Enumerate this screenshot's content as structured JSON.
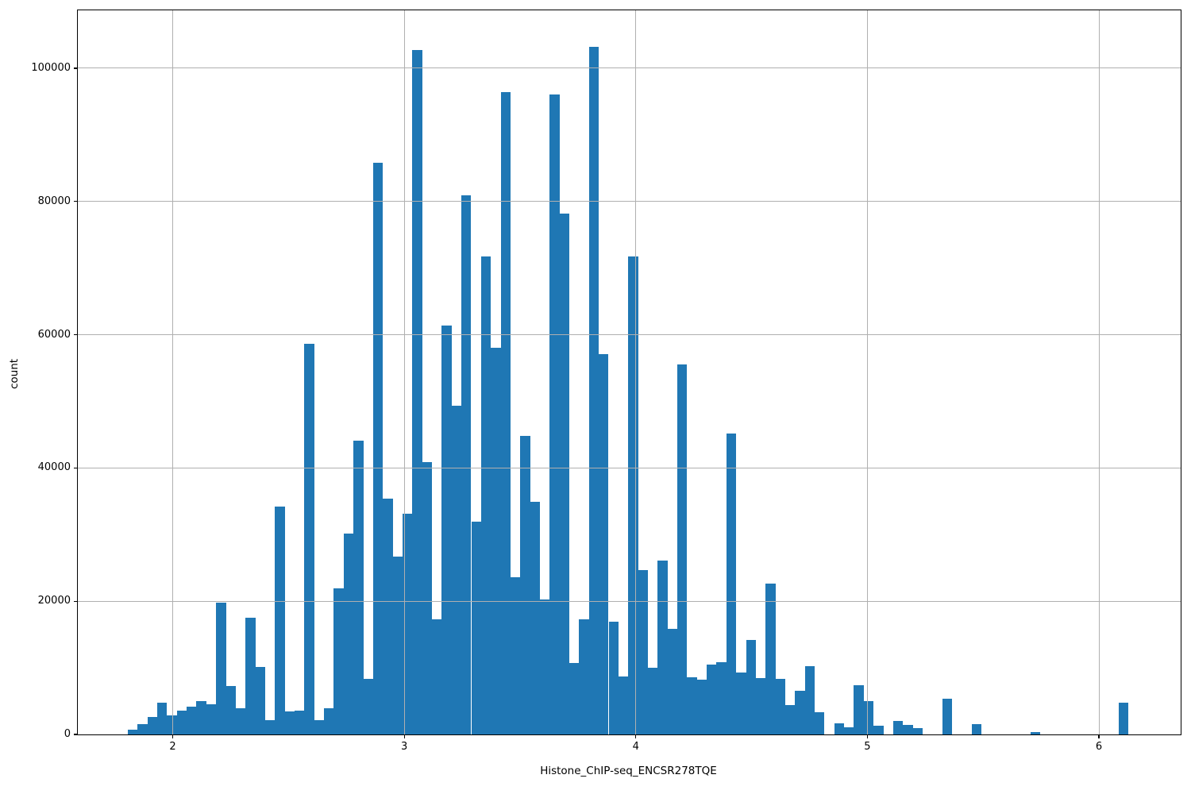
{
  "chart_data": {
    "type": "bar",
    "subtype": "histogram",
    "title": "",
    "xlabel": "Histone_ChIP-seq_ENCSR278TQE",
    "ylabel": "count",
    "bar_color": "#1f77b4",
    "grid_color": "#b0b0b0",
    "grid": true,
    "grid_above_bars": true,
    "xlim": [
      1.59,
      6.353
    ],
    "ylim": [
      0,
      108700
    ],
    "x_ticks": [
      2,
      3,
      4,
      5,
      6
    ],
    "y_ticks": [
      0,
      20000,
      40000,
      60000,
      80000,
      100000
    ],
    "bin_start": 1.806,
    "bin_width": 0.042375,
    "counts": [
      700,
      1600,
      2600,
      4800,
      2900,
      3600,
      4200,
      5000,
      4500,
      19800,
      7300,
      3900,
      17500,
      10100,
      2200,
      34200,
      3400,
      3600,
      58600,
      2100,
      3900,
      21900,
      30100,
      44100,
      8400,
      85800,
      35400,
      26700,
      33100,
      102700,
      40900,
      17300,
      61400,
      49300,
      80900,
      31900,
      71800,
      58100,
      96400,
      23600,
      44800,
      34900,
      20300,
      96100,
      78200,
      10700,
      17300,
      103200,
      57100,
      16900,
      8700,
      71800,
      24700,
      10000,
      26100,
      15900,
      55600,
      8600,
      8200,
      10500,
      10800,
      45200,
      9300,
      14200,
      8500,
      22700,
      8400,
      4450,
      6600,
      10300,
      3300,
      0,
      1700,
      1050,
      7350,
      5000,
      1300,
      0,
      2000,
      1450,
      900,
      0,
      0,
      5400,
      0,
      0,
      1500,
      0,
      0,
      0,
      0,
      0,
      400,
      0,
      0,
      0,
      0,
      0,
      0,
      0,
      0,
      4800
    ]
  }
}
